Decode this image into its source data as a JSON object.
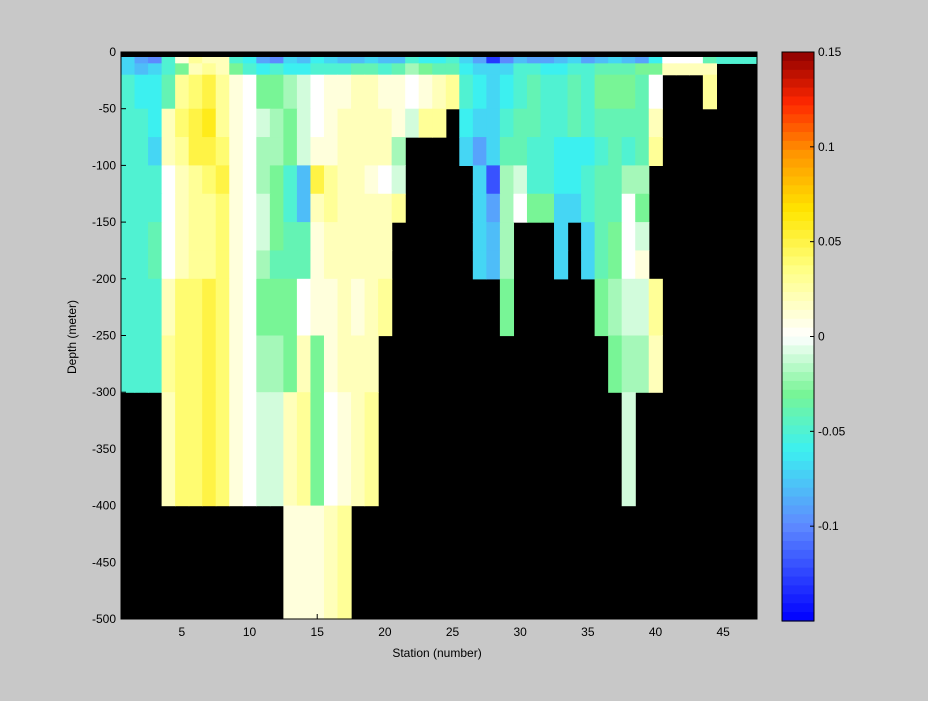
{
  "chart_data": {
    "type": "heatmap",
    "title": "",
    "xlabel": "Station (number)",
    "ylabel": "Depth (meter)",
    "xlim": [
      1,
      47
    ],
    "ylim": [
      -500,
      0
    ],
    "x_ticks": [
      5,
      10,
      15,
      20,
      25,
      30,
      35,
      40,
      45
    ],
    "y_ticks": [
      0,
      -50,
      -100,
      -150,
      -200,
      -250,
      -300,
      -350,
      -400,
      -450,
      -500
    ],
    "colorbar": {
      "clim": [
        -0.15,
        0.15
      ],
      "ticks": [
        0.15,
        0.1,
        0.05,
        0,
        -0.05,
        -0.1
      ],
      "tick_labels": [
        "0.15",
        "0.1",
        "0.05",
        "0",
        "-0.05",
        "-0.1"
      ],
      "colormap": "jet-with-white-center"
    },
    "missing_color": "#000000",
    "grid": false,
    "stations": [
      1,
      2,
      3,
      4,
      5,
      6,
      7,
      8,
      9,
      10,
      11,
      12,
      13,
      14,
      15,
      16,
      17,
      18,
      19,
      20,
      21,
      22,
      23,
      24,
      25,
      26,
      27,
      28,
      29,
      30,
      31,
      32,
      33,
      34,
      35,
      36,
      37,
      38,
      39,
      40,
      41,
      42,
      43,
      44,
      45,
      46,
      47
    ],
    "max_depth": [
      300,
      300,
      300,
      400,
      400,
      400,
      400,
      400,
      400,
      400,
      400,
      500,
      500,
      500,
      500,
      500,
      500,
      400,
      400,
      250,
      150,
      75,
      75,
      75,
      50,
      100,
      200,
      200,
      250,
      150,
      150,
      150,
      200,
      150,
      200,
      250,
      300,
      400,
      400,
      300,
      250,
      25,
      25,
      50,
      25,
      25,
      25
    ],
    "depth_bins": [
      0,
      10,
      20,
      50,
      75,
      100,
      125,
      150,
      175,
      200,
      250,
      300,
      400,
      500
    ],
    "values": [
      [
        -0.07,
        -0.09,
        -0.1,
        -0.05,
        0.01,
        0.03,
        0.02,
        0.02,
        -0.05,
        -0.06,
        -0.09,
        -0.1,
        -0.07,
        -0.08,
        -0.06,
        -0.07,
        -0.08,
        -0.08,
        -0.07,
        -0.08,
        -0.08,
        -0.05,
        -0.06,
        -0.06,
        -0.05,
        -0.07,
        -0.09,
        -0.13,
        -0.1,
        -0.08,
        -0.09,
        -0.09,
        -0.08,
        -0.07,
        -0.09,
        -0.08,
        -0.07,
        -0.08,
        -0.09,
        -0.06,
        0.0,
        0.0,
        0.0,
        -0.04,
        -0.05,
        -0.05,
        -0.05
      ],
      [
        -0.07,
        -0.08,
        -0.07,
        -0.05,
        -0.03,
        0.02,
        0.03,
        0.02,
        -0.03,
        -0.05,
        -0.06,
        -0.05,
        -0.06,
        -0.06,
        -0.05,
        -0.05,
        -0.05,
        -0.04,
        -0.04,
        -0.05,
        -0.04,
        -0.02,
        -0.03,
        -0.04,
        -0.04,
        -0.06,
        -0.07,
        -0.07,
        -0.07,
        -0.05,
        -0.05,
        -0.06,
        -0.06,
        -0.05,
        -0.05,
        -0.04,
        -0.04,
        -0.04,
        -0.03,
        -0.03,
        0.02,
        0.02,
        0.02,
        0.02,
        null,
        null,
        null
      ],
      [
        -0.05,
        -0.06,
        -0.06,
        -0.04,
        0.03,
        0.04,
        0.05,
        0.03,
        0.01,
        0.0,
        -0.03,
        -0.03,
        -0.02,
        -0.01,
        0.0,
        0.01,
        0.01,
        0.02,
        0.02,
        0.01,
        0.01,
        0.0,
        0.01,
        0.02,
        0.03,
        -0.05,
        -0.06,
        -0.07,
        -0.06,
        -0.05,
        -0.04,
        -0.05,
        -0.05,
        -0.04,
        -0.05,
        -0.03,
        -0.03,
        -0.03,
        -0.04,
        0.0,
        null,
        null,
        null,
        0.03,
        null,
        null,
        null
      ],
      [
        -0.05,
        -0.05,
        -0.06,
        0.02,
        0.04,
        0.05,
        0.06,
        0.03,
        0.01,
        0.0,
        -0.01,
        -0.02,
        -0.03,
        -0.01,
        0.0,
        0.01,
        0.02,
        0.02,
        0.02,
        0.02,
        0.01,
        -0.01,
        0.03,
        0.03,
        null,
        -0.06,
        -0.07,
        -0.07,
        -0.05,
        -0.04,
        -0.04,
        -0.05,
        -0.05,
        -0.04,
        -0.05,
        -0.04,
        -0.04,
        -0.04,
        -0.04,
        0.02,
        null,
        null,
        null,
        null,
        null,
        null,
        null
      ],
      [
        -0.05,
        -0.05,
        -0.07,
        0.02,
        0.03,
        0.05,
        0.05,
        0.04,
        0.01,
        0.0,
        -0.02,
        -0.02,
        -0.03,
        -0.01,
        0.01,
        0.01,
        0.02,
        0.02,
        0.02,
        0.02,
        -0.02,
        null,
        null,
        null,
        null,
        -0.07,
        -0.09,
        -0.07,
        -0.04,
        -0.04,
        -0.05,
        -0.05,
        -0.06,
        -0.06,
        -0.06,
        -0.05,
        -0.04,
        -0.05,
        -0.04,
        0.03,
        null,
        null,
        null,
        null,
        null,
        null,
        null
      ],
      [
        -0.05,
        -0.05,
        -0.05,
        0.0,
        0.02,
        0.03,
        0.04,
        0.05,
        0.01,
        0.0,
        -0.02,
        -0.03,
        -0.05,
        -0.08,
        0.05,
        0.03,
        0.02,
        0.02,
        0.01,
        0.0,
        -0.01,
        null,
        null,
        null,
        null,
        null,
        -0.07,
        -0.12,
        -0.02,
        -0.01,
        -0.05,
        -0.05,
        -0.06,
        -0.06,
        -0.05,
        -0.04,
        -0.04,
        -0.02,
        -0.02,
        null,
        null,
        null,
        null,
        null,
        null,
        null,
        null
      ],
      [
        -0.05,
        -0.05,
        -0.05,
        0.0,
        0.02,
        0.03,
        0.03,
        0.04,
        0.01,
        0.0,
        -0.01,
        -0.03,
        -0.05,
        -0.08,
        0.02,
        0.03,
        0.02,
        0.02,
        0.02,
        0.02,
        0.03,
        null,
        null,
        null,
        null,
        null,
        -0.07,
        -0.09,
        -0.02,
        0.0,
        -0.03,
        -0.03,
        -0.07,
        -0.07,
        -0.05,
        -0.04,
        -0.04,
        0.0,
        -0.03,
        null,
        null,
        null,
        null,
        null,
        null,
        null,
        null
      ],
      [
        -0.05,
        -0.05,
        -0.04,
        0.0,
        0.02,
        0.03,
        0.03,
        0.04,
        0.01,
        0.0,
        -0.01,
        -0.03,
        -0.04,
        -0.04,
        0.01,
        0.02,
        0.02,
        0.02,
        0.02,
        0.02,
        null,
        null,
        null,
        null,
        null,
        null,
        -0.07,
        -0.08,
        -0.02,
        null,
        null,
        null,
        -0.07,
        null,
        -0.07,
        -0.04,
        -0.03,
        0.0,
        -0.01,
        null,
        null,
        null,
        null,
        null,
        null,
        null,
        null
      ],
      [
        -0.05,
        -0.05,
        -0.04,
        0.0,
        0.02,
        0.03,
        0.03,
        0.04,
        0.01,
        0.0,
        -0.02,
        -0.04,
        -0.04,
        -0.04,
        0.01,
        0.02,
        0.02,
        0.02,
        0.02,
        0.02,
        null,
        null,
        null,
        null,
        null,
        null,
        -0.07,
        -0.08,
        -0.02,
        null,
        null,
        null,
        -0.07,
        null,
        -0.07,
        -0.04,
        -0.03,
        0.0,
        0.01,
        null,
        null,
        null,
        null,
        null,
        null,
        null,
        null
      ],
      [
        -0.05,
        -0.05,
        -0.05,
        0.02,
        0.04,
        0.04,
        0.05,
        0.04,
        0.01,
        0.0,
        -0.03,
        -0.03,
        -0.03,
        0.0,
        0.01,
        0.01,
        0.02,
        0.01,
        0.02,
        0.03,
        null,
        null,
        null,
        null,
        null,
        null,
        null,
        null,
        -0.03,
        null,
        null,
        null,
        null,
        null,
        null,
        -0.03,
        -0.02,
        -0.01,
        -0.01,
        0.03,
        null,
        null,
        null,
        null,
        null,
        null,
        null
      ],
      [
        -0.05,
        -0.05,
        -0.05,
        0.03,
        0.04,
        0.04,
        0.05,
        0.04,
        0.01,
        0.0,
        -0.02,
        -0.02,
        -0.03,
        0.02,
        -0.03,
        0.01,
        0.02,
        0.02,
        0.02,
        null,
        null,
        null,
        null,
        null,
        null,
        null,
        null,
        null,
        null,
        null,
        null,
        null,
        null,
        null,
        null,
        null,
        -0.03,
        -0.02,
        -0.02,
        0.02,
        null,
        null,
        null,
        null,
        null,
        null,
        null
      ],
      [
        null,
        null,
        null,
        0.02,
        0.04,
        0.04,
        0.05,
        0.04,
        0.01,
        0.0,
        -0.01,
        -0.01,
        0.02,
        0.03,
        -0.03,
        0.0,
        0.01,
        0.02,
        0.03,
        null,
        null,
        null,
        null,
        null,
        null,
        null,
        null,
        null,
        null,
        null,
        null,
        null,
        null,
        null,
        null,
        null,
        null,
        -0.01,
        null,
        null,
        null,
        null,
        null,
        null,
        null,
        null,
        null
      ],
      [
        null,
        null,
        null,
        null,
        null,
        null,
        null,
        null,
        null,
        null,
        null,
        null,
        0.01,
        0.01,
        0.01,
        0.02,
        0.03,
        null,
        null,
        null,
        null,
        null,
        null,
        null,
        null,
        null,
        null,
        null,
        null,
        null,
        null,
        null,
        null,
        null,
        null,
        null,
        null,
        null,
        null,
        null,
        null,
        null,
        null,
        null,
        null,
        null,
        null
      ]
    ]
  }
}
